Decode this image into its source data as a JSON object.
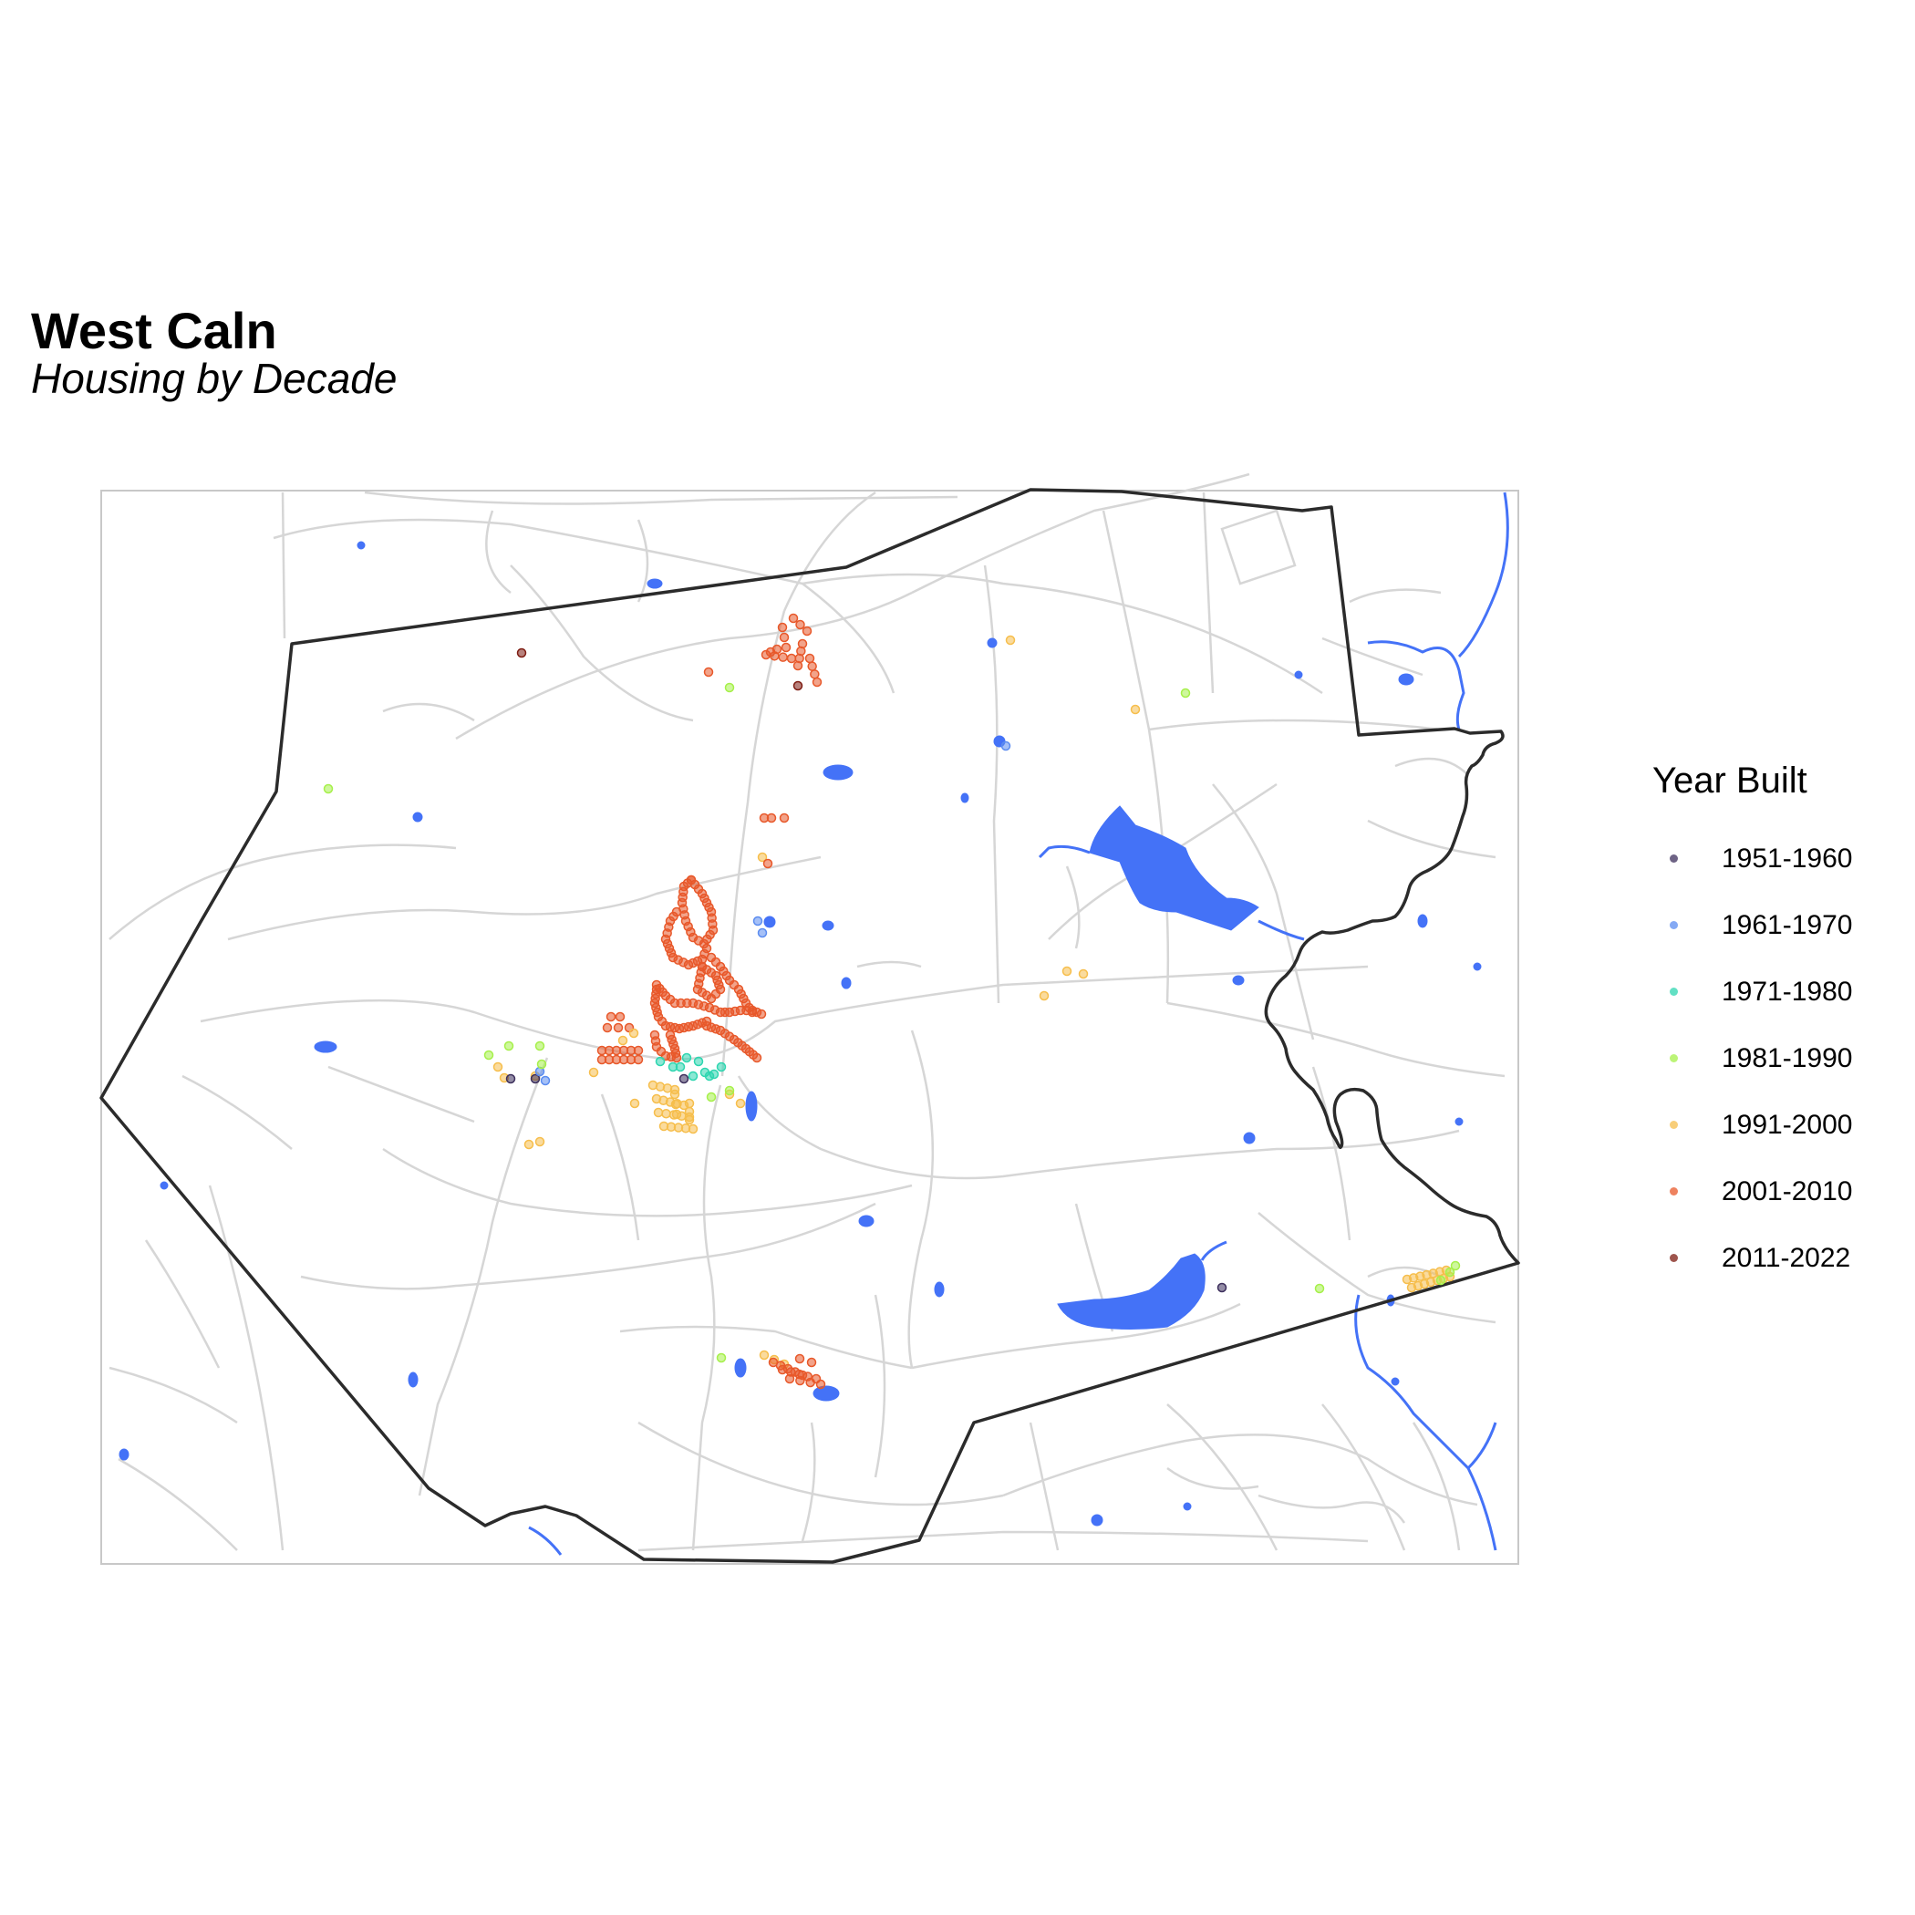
{
  "header": {
    "title": "West Caln",
    "subtitle": "Housing by Decade"
  },
  "legend": {
    "title": "Year Built",
    "items": [
      {
        "label": "1951-1960",
        "color": "#3d2f5c"
      },
      {
        "label": "1961-1970",
        "color": "#5b8cf0"
      },
      {
        "label": "1971-1980",
        "color": "#2ed6b0"
      },
      {
        "label": "1981-1990",
        "color": "#a6f04a"
      },
      {
        "label": "1991-2000",
        "color": "#f6be4c"
      },
      {
        "label": "2001-2010",
        "color": "#e8582a"
      },
      {
        "label": "2011-2022",
        "color": "#7e1c12"
      }
    ]
  },
  "map_colors": {
    "roads": "#d6d6d6",
    "water": "#4472f7",
    "boundary": "#2b2b2b",
    "frame": "#c8c8c8"
  }
}
